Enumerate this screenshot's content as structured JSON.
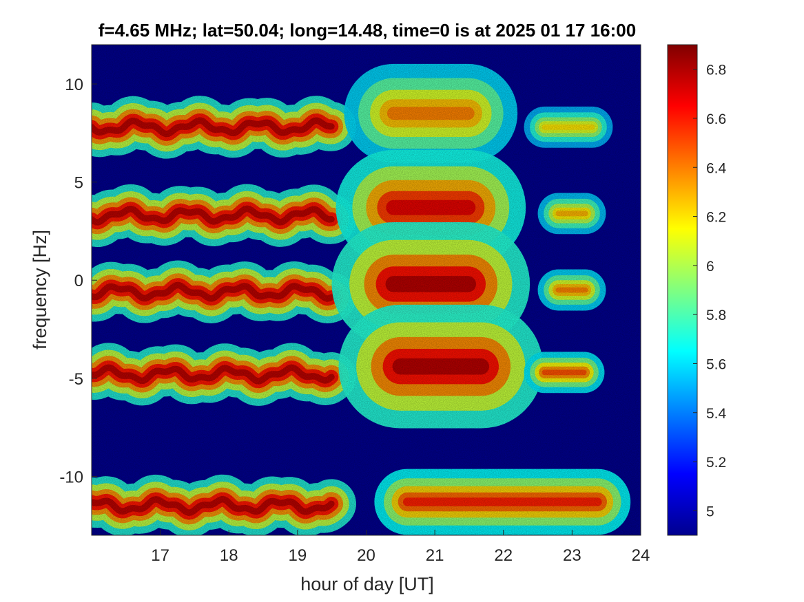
{
  "chart_data": {
    "type": "heatmap",
    "title": "f=4.65 MHz;  lat=50.04; long=14.48, time=0 is at 2025 01 17 16:00",
    "xlabel": "hour of day [UT]",
    "ylabel": "frequency [Hz]",
    "xlim": [
      16,
      24
    ],
    "ylim": [
      -13,
      12
    ],
    "xticks": [
      17,
      18,
      19,
      20,
      21,
      22,
      23,
      24
    ],
    "yticks": [
      10,
      5,
      0,
      -5,
      -10
    ],
    "colormap": "jet",
    "background_color": "#00008f",
    "colorbar": {
      "range": [
        4.9,
        6.9
      ],
      "ticks": [
        6.8,
        6.6,
        6.4,
        6.2,
        6,
        5.8,
        5.6,
        5.4,
        5.2,
        5
      ]
    },
    "series": [
      {
        "x_range": [
          16,
          19.5
        ],
        "y_center": 7.8,
        "y_spread": 0.6,
        "level": 6.8,
        "wavy": true
      },
      {
        "x_range": [
          16,
          19.5
        ],
        "y_center": 3.3,
        "y_spread": 0.6,
        "level": 6.8,
        "wavy": true
      },
      {
        "x_range": [
          16,
          19.5
        ],
        "y_center": -0.6,
        "y_spread": 0.6,
        "level": 6.8,
        "wavy": true
      },
      {
        "x_range": [
          16,
          19.5
        ],
        "y_center": -4.8,
        "y_spread": 0.6,
        "level": 6.8,
        "wavy": true
      },
      {
        "x_range": [
          16,
          19.5
        ],
        "y_center": -11.5,
        "y_spread": 0.6,
        "level": 6.8,
        "wavy": true
      },
      {
        "x_range": [
          20.4,
          21.5
        ],
        "y_center": 8.5,
        "y_spread": 1.2,
        "level": 6.4,
        "wavy": false
      },
      {
        "x_range": [
          20.4,
          21.5
        ],
        "y_center": 3.7,
        "y_spread": 1.4,
        "level": 6.7,
        "wavy": false
      },
      {
        "x_range": [
          20.4,
          21.5
        ],
        "y_center": -0.2,
        "y_spread": 1.5,
        "level": 6.8,
        "wavy": false
      },
      {
        "x_range": [
          20.5,
          21.7
        ],
        "y_center": -4.4,
        "y_spread": 1.5,
        "level": 6.8,
        "wavy": false
      },
      {
        "x_range": [
          20.6,
          23.4
        ],
        "y_center": -11.3,
        "y_spread": 0.8,
        "level": 6.6,
        "wavy": false
      },
      {
        "x_range": [
          22.6,
          23.3
        ],
        "y_center": 7.8,
        "y_spread": 0.5,
        "level": 6.2,
        "wavy": false
      },
      {
        "x_range": [
          22.8,
          23.2
        ],
        "y_center": 3.4,
        "y_spread": 0.5,
        "level": 6.3,
        "wavy": false
      },
      {
        "x_range": [
          22.8,
          23.2
        ],
        "y_center": -0.5,
        "y_spread": 0.5,
        "level": 6.4,
        "wavy": false
      },
      {
        "x_range": [
          22.6,
          23.2
        ],
        "y_center": -4.7,
        "y_spread": 0.5,
        "level": 6.5,
        "wavy": false
      }
    ]
  }
}
